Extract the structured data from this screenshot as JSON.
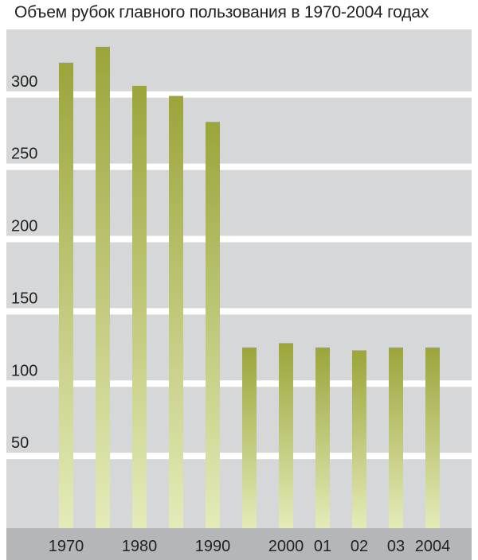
{
  "chart_data": {
    "type": "bar",
    "title": "Объем рубок главного пользования в 1970-2004 годах",
    "xlabel": "",
    "ylabel": "",
    "ylim": [
      0,
      345
    ],
    "yticks": [
      50,
      100,
      150,
      200,
      250,
      300
    ],
    "categories": [
      "1970",
      "",
      "1980",
      "",
      "1990",
      "",
      "2000",
      "01",
      "02",
      "03",
      "2004"
    ],
    "values": [
      322,
      333,
      306,
      299,
      281,
      125,
      128,
      125,
      123,
      125,
      125
    ],
    "grid": true,
    "legend": "none",
    "colors": {
      "panel": "#d6d7d9",
      "grid": "#ffffff",
      "xbar": "#b5b6b8",
      "bar_top": "#9ba53a",
      "bar_bottom": "#e4ebb9",
      "text": "#222222"
    }
  }
}
